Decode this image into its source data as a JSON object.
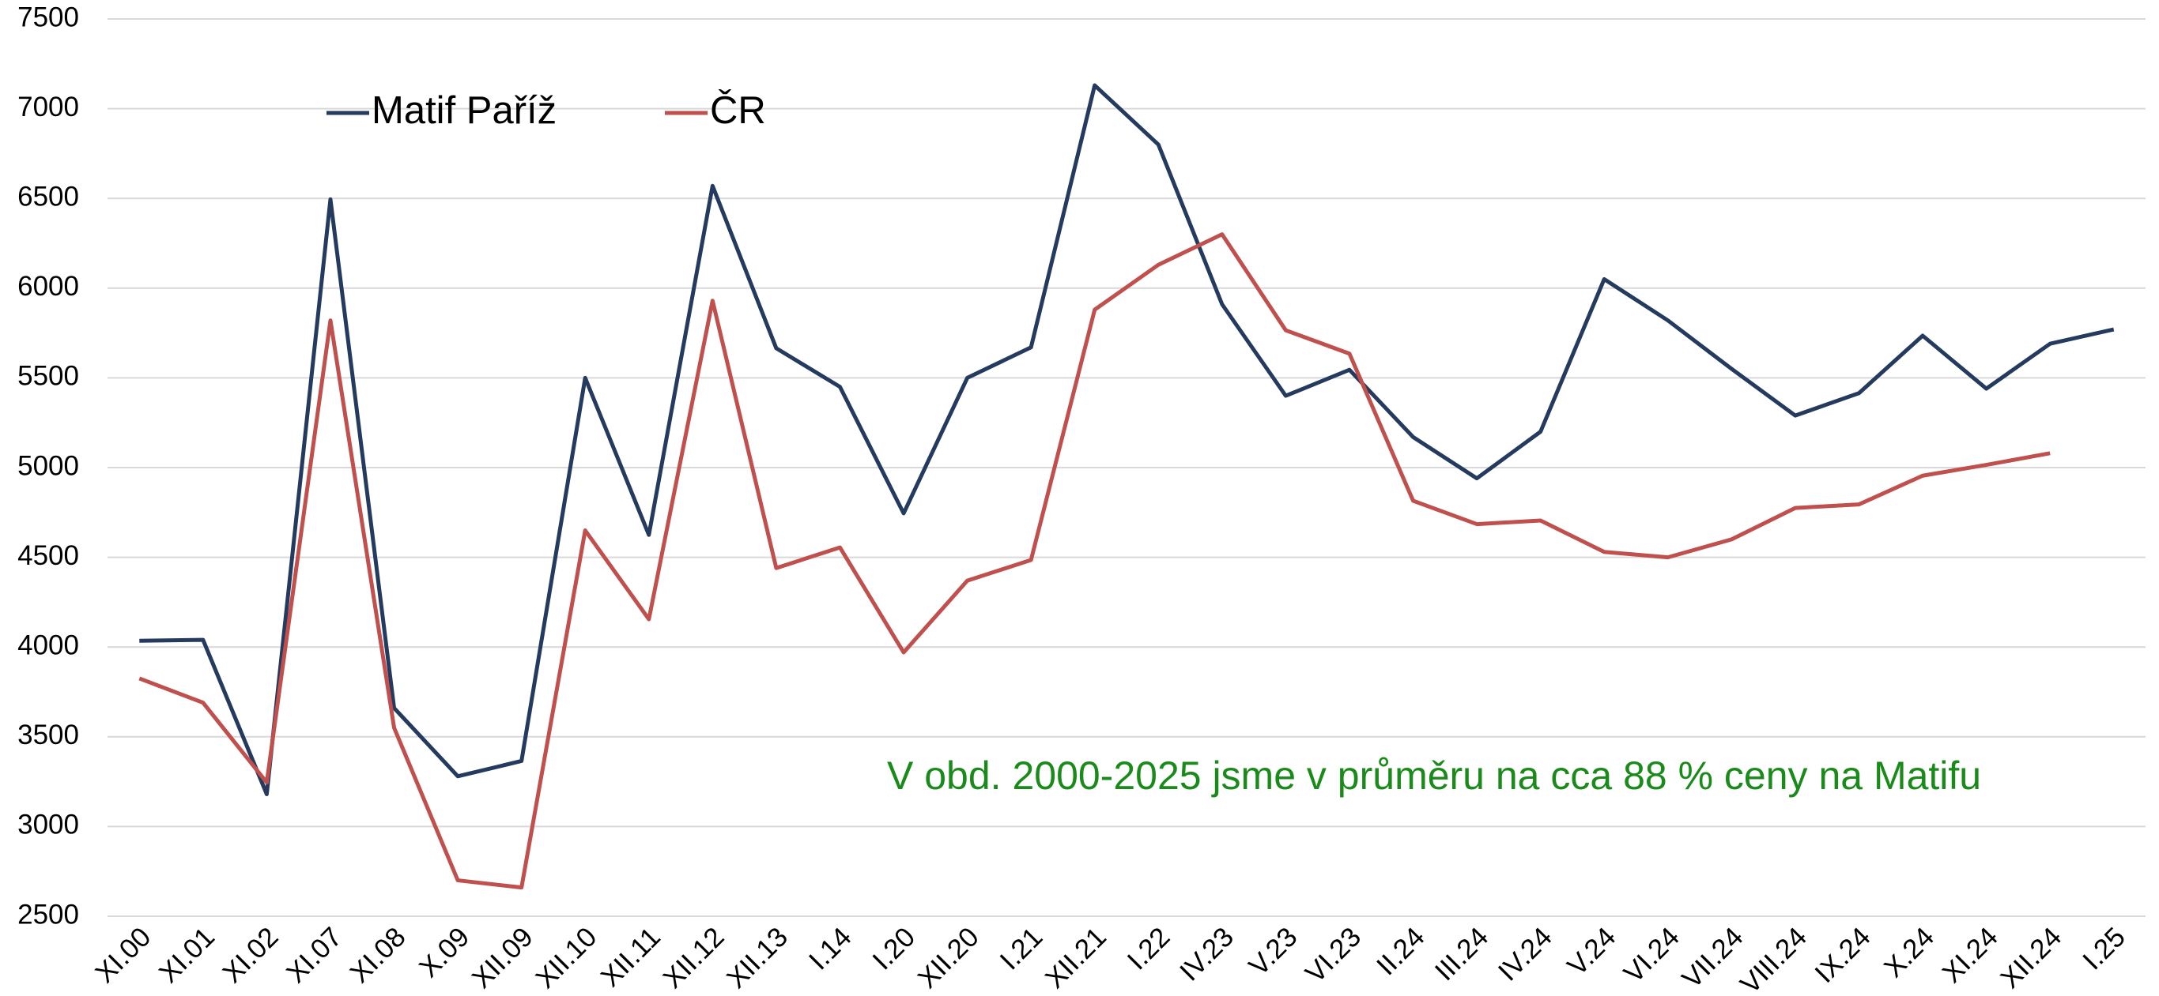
{
  "chart_data": {
    "type": "line",
    "annotation": "V obd. 2000-2025 jsme v průměru na cca 88 % ceny na Matifu",
    "categories": [
      "XI.00",
      "XI.01",
      "XI.02",
      "XI.07",
      "XI.08",
      "X.09",
      "XII.09",
      "XII.10",
      "XII.11",
      "XII.12",
      "XII.13",
      "I.14",
      "I.20",
      "XII.20",
      "I.21",
      "XII.21",
      "I.22",
      "IV.23",
      "V.23",
      "VI.23",
      "II.24",
      "III.24",
      "IV.24",
      "V.24",
      "VI.24",
      "VII.24",
      "VIII.24",
      "IX.24",
      "X.24",
      "XI.24",
      "XII.24",
      "I.25"
    ],
    "series": [
      {
        "name": "Matif Paříž",
        "color": "#243a5e",
        "values": [
          4035,
          4040,
          3180,
          6495,
          3660,
          3280,
          3365,
          5500,
          4625,
          6570,
          5665,
          5450,
          4745,
          5500,
          5670,
          7130,
          6800,
          5910,
          5400,
          5545,
          5170,
          4940,
          5200,
          6050,
          5820,
          5550,
          5290,
          5415,
          5735,
          5440,
          5690,
          5770
        ]
      },
      {
        "name": "ČR",
        "color": "#c0504d",
        "values": [
          3825,
          3690,
          3245,
          5820,
          3550,
          2700,
          2660,
          4650,
          4155,
          5930,
          4440,
          4555,
          3970,
          4370,
          4485,
          5880,
          6130,
          6300,
          5765,
          5635,
          4815,
          4685,
          4705,
          4530,
          4500,
          4600,
          4775,
          4795,
          4955,
          5015,
          5080,
          null
        ]
      }
    ],
    "ylim": [
      2500,
      7500
    ],
    "yticks": [
      2500,
      3000,
      3500,
      4000,
      4500,
      5000,
      5500,
      6000,
      6500,
      7000,
      7500
    ],
    "grid": true
  }
}
